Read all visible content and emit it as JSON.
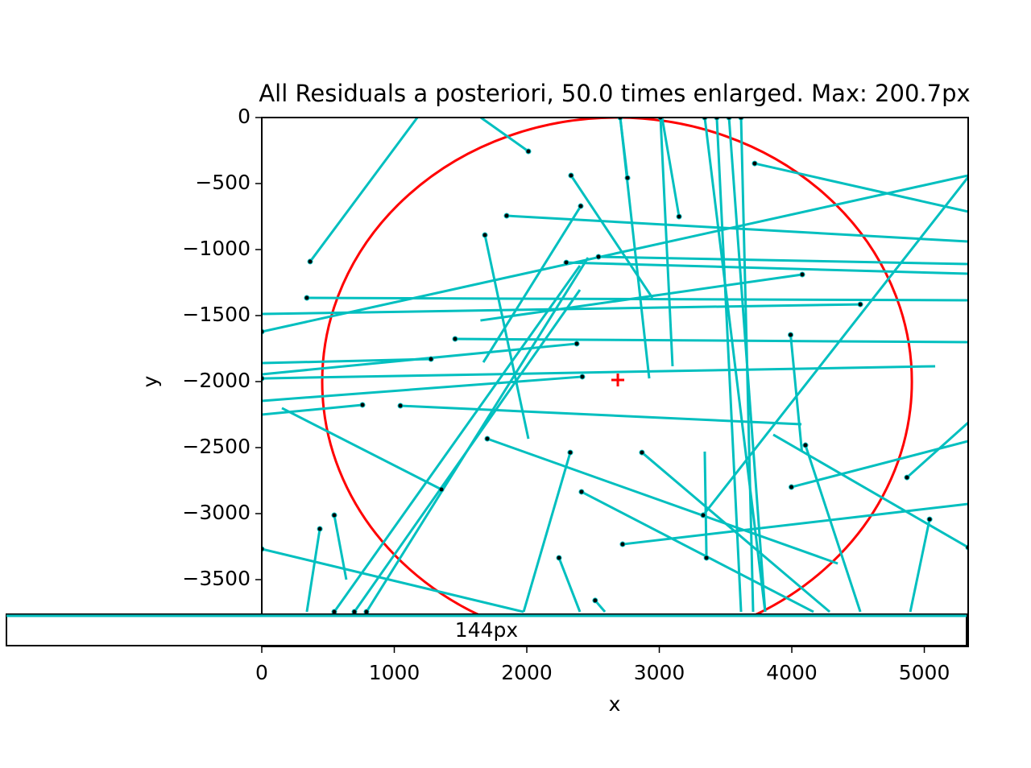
{
  "chart_data": {
    "type": "residuals",
    "title": "All Residuals a posteriori, 50.0 times enlarged. Max: 200.7px",
    "xlabel": "x",
    "ylabel": "y",
    "xlim": [
      0,
      5331
    ],
    "ylim": [
      -4006,
      0
    ],
    "xticks": [
      0,
      1000,
      2000,
      3000,
      4000,
      5000
    ],
    "yticks": [
      0,
      {
        "value": -500,
        "label": "−500"
      },
      {
        "value": -1000,
        "label": "−1000"
      },
      {
        "value": -1500,
        "label": "−1500"
      },
      {
        "value": -2000,
        "label": "−2000"
      },
      {
        "value": -2500,
        "label": "−2500"
      },
      {
        "value": -3000,
        "label": "−3000"
      },
      {
        "value": -3500,
        "label": "−3500"
      }
    ],
    "color": "#00bfbf",
    "point_color": "#000000",
    "ellipse": {
      "color": "#ff0000",
      "center": [
        2681,
        -2000
      ],
      "rx": 2225,
      "ry": 2000,
      "marker": [
        2687,
        -1988
      ]
    },
    "legend": {
      "label": "144px",
      "color": "#00bfbf"
    },
    "x": [
      365,
      2012,
      3720,
      1684,
      1848,
      2334,
      2407,
      2760,
      3149,
      2541,
      2298,
      4079,
      340,
      4517,
      1459,
      1277,
      2377,
      2419,
      1046,
      760,
      1356,
      1702,
      2328,
      2413,
      2869,
      2723,
      4103,
      3997,
      4869,
      5040,
      547,
      438,
      2243,
      2516,
      3356,
      3991,
      0,
      3331,
      0,
      3343,
      3434,
      3526,
      3617,
      3009,
      2705,
      547,
      699,
      790,
      0,
      5331
    ],
    "y": [
      -1091,
      -256,
      -348,
      -890,
      -744,
      -439,
      -671,
      -457,
      -750,
      -1055,
      -1098,
      -1189,
      -1366,
      -1415,
      -1677,
      -1829,
      -1713,
      -1963,
      -2183,
      -2177,
      -2817,
      -2433,
      -2537,
      -2835,
      -2537,
      -3232,
      -2482,
      -2799,
      -2726,
      -3043,
      -3012,
      -3116,
      -3335,
      -3658,
      -3335,
      -1646,
      -1622,
      -3012,
      -3268,
      0,
      0,
      0,
      0,
      0,
      0,
      -3744,
      -3744,
      -3744,
      -1976,
      -3256
    ],
    "x_end": [
      1174,
      1653,
      5331,
      2012,
      5331,
      2948,
      1672,
      2705,
      3021,
      5331,
      5331,
      1650,
      5331,
      0,
      5331,
      0,
      0,
      0,
      4073,
      0,
      152,
      4347,
      1976,
      4164,
      4286,
      5331,
      4517,
      5331,
      5331,
      4894,
      638,
      340,
      2401,
      2590,
      3343,
      4076,
      5331,
      5331,
      1976,
      3799,
      3617,
      3799,
      3708,
      3100,
      2924,
      2401,
      2401,
      2462,
      5082,
      3860
    ],
    "y_end": [
      0,
      0,
      -713,
      -2433,
      -939,
      -1366,
      -1854,
      0,
      0,
      -1110,
      -1183,
      -1537,
      -1384,
      -1488,
      -1701,
      -1860,
      -1945,
      -2146,
      -2323,
      -2250,
      -2201,
      -3378,
      -3744,
      -3744,
      -3744,
      -2927,
      -3744,
      -2451,
      -2311,
      -3744,
      -3500,
      -3744,
      -3744,
      -3744,
      -2530,
      -2530,
      -439,
      -451,
      -3744,
      -3744,
      -3744,
      -3744,
      -3744,
      -1884,
      -1976,
      -1122,
      -1305,
      -1061,
      -1884,
      -2402
    ]
  }
}
